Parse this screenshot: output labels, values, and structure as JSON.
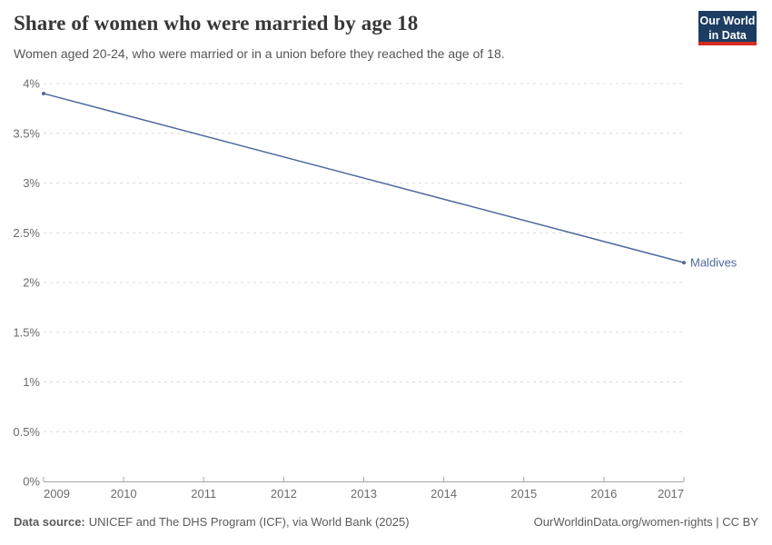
{
  "header": {
    "title": "Share of women who were married by age 18",
    "subtitle": "Women aged 20-24, who were married or in a union before they reached the age of 18."
  },
  "logo": {
    "line1": "Our World",
    "line2": "in Data",
    "bg_color": "#1d3d63",
    "accent_color": "#d42b21"
  },
  "chart_data": {
    "type": "line",
    "title": "Share of women who were married by age 18",
    "xlabel": "",
    "ylabel": "",
    "xlim": [
      2009,
      2017
    ],
    "ylim": [
      0,
      4
    ],
    "grid": "horizontal-dashed",
    "legend": "end-of-line-label",
    "x_ticks": [
      2009,
      2010,
      2011,
      2012,
      2013,
      2014,
      2015,
      2016,
      2017
    ],
    "y_ticks": [
      {
        "value": 0,
        "label": "0%"
      },
      {
        "value": 0.5,
        "label": "0.5%"
      },
      {
        "value": 1,
        "label": "1%"
      },
      {
        "value": 1.5,
        "label": "1.5%"
      },
      {
        "value": 2,
        "label": "2%"
      },
      {
        "value": 2.5,
        "label": "2.5%"
      },
      {
        "value": 3,
        "label": "3%"
      },
      {
        "value": 3.5,
        "label": "3.5%"
      },
      {
        "value": 4,
        "label": "4%"
      }
    ],
    "series": [
      {
        "name": "Maldives",
        "color": "#4C6A9C",
        "points": [
          {
            "year": 2009,
            "value": 3.9
          },
          {
            "year": 2017,
            "value": 2.2
          }
        ]
      }
    ],
    "style": {
      "gridline_color": "#dcdcdc",
      "axis_color": "#a5a5a5",
      "tick_label_color": "#6b6b6b"
    }
  },
  "footer": {
    "source_label": "Data source:",
    "source_text": "UNICEF and The DHS Program (ICF), via World Bank (2025)",
    "link_text": "OurWorldinData.org/women-rights | CC BY"
  }
}
